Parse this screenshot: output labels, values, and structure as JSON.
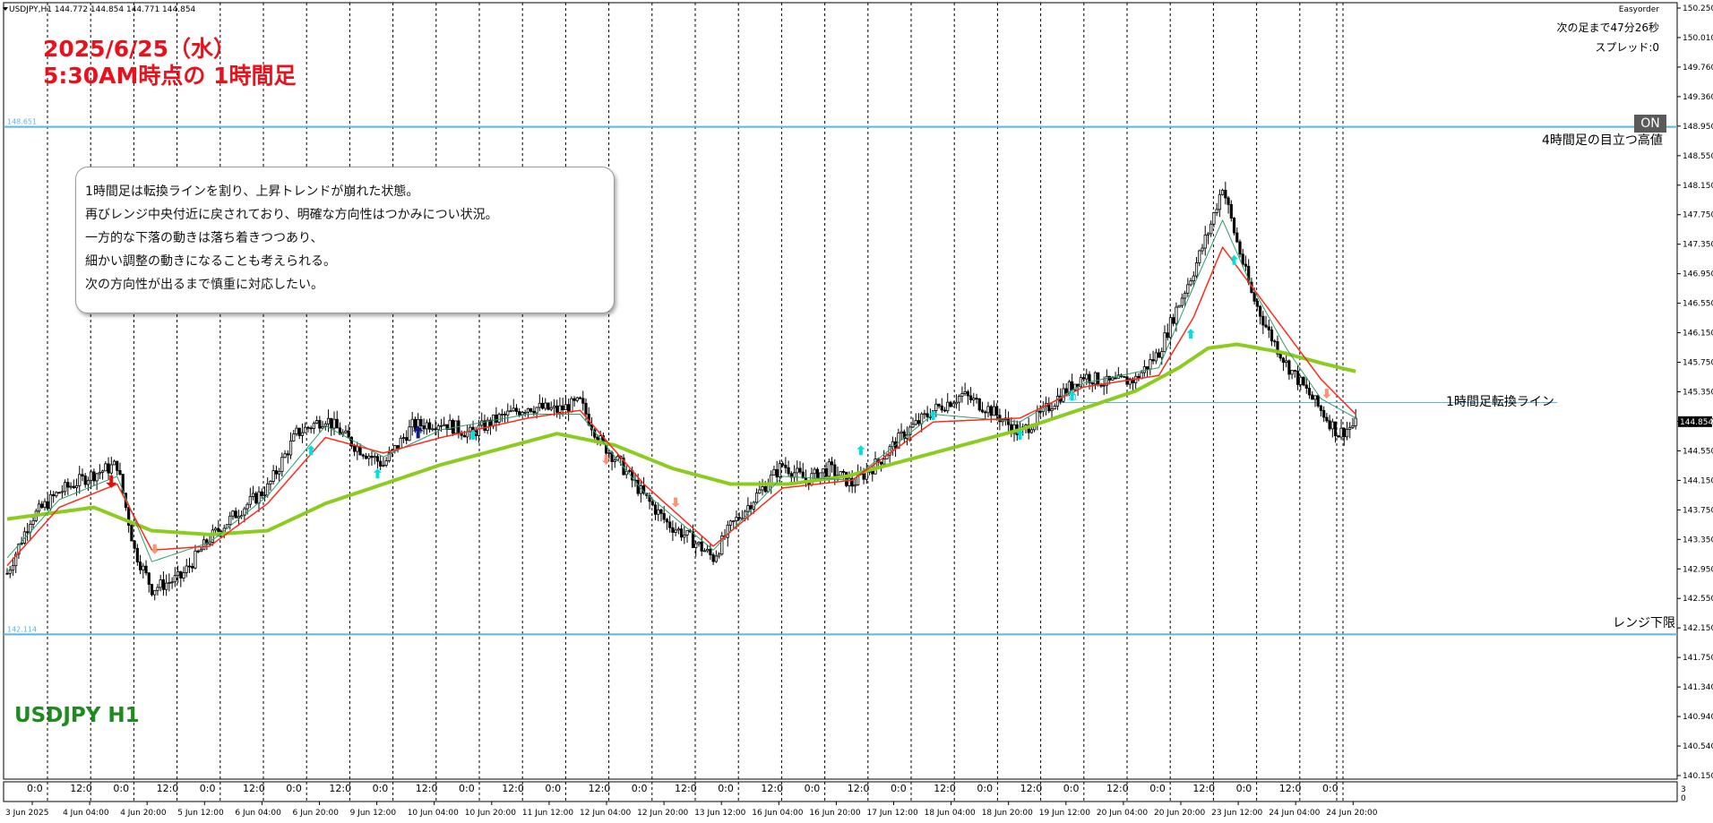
{
  "header": {
    "symbol_info": "USDJPY,H1  144.772 144.854 144.771 144.854",
    "ea_name": "Easyorder",
    "countdown": "次の足まで47分26秒",
    "spread": "スプレッド:0",
    "on_button": "ON"
  },
  "overlay": {
    "title_line1": "2025/6/25（水）",
    "title_line2": "5:30AM時点の 1時間足",
    "symbol_label": "USDJPY H1",
    "note_lines": [
      "1時間足は転換ラインを割り、上昇トレンドが崩れた状態。",
      "再びレンジ中央付近に戻されており、明確な方向性はつかみについ状況。",
      "一方的な下落の動きは落ち着きつつあり、",
      "細かい調整の動きになることも考えられる。",
      "次の方向性が出るまで慎重に対応したい。"
    ]
  },
  "hlines": [
    {
      "label": "4時間足の目立つ高値",
      "value_label": "148.651",
      "value": 148.651
    },
    {
      "label": "1時間足転換ライン",
      "value_label": "145.1",
      "value": 145.1
    },
    {
      "label": "レンジ下限",
      "value_label": "142.114",
      "value": 142.114
    }
  ],
  "colors": {
    "candle": "#000000",
    "ma_fast": "#2e9e6a",
    "ma_mid": "#ff2a1a",
    "ma_slow": "#8ccc20",
    "hline": "#5ab4e8",
    "signal_up": "#00e0e0",
    "signal_down": "#ff9070",
    "signal_strong_up": "#0a1a8a",
    "signal_strong_down": "#e01010",
    "title": "#e8111c",
    "symbol": "#1f8a1f"
  },
  "chart_data": {
    "type": "candlestick",
    "symbol": "USDJPY",
    "timeframe": "H1",
    "price_axis": {
      "ylim": [
        140.25,
        150.25
      ],
      "ticks": [
        "150.250",
        "150.010",
        "149.760",
        "149.360",
        "148.950",
        "148.550",
        "148.150",
        "147.750",
        "147.350",
        "146.950",
        "146.550",
        "146.150",
        "145.750",
        "145.350",
        "144.950",
        "144.550",
        "144.150",
        "143.750",
        "143.350",
        "142.950",
        "142.550",
        "142.150",
        "141.750",
        "141.340",
        "140.940",
        "140.540",
        "140.150"
      ],
      "current_price": "144.854"
    },
    "time_axis": {
      "labels": [
        "3 Jun 2025",
        "4 Jun 04:00",
        "4 Jun 20:00",
        "5 Jun 12:00",
        "6 Jun 04:00",
        "6 Jun 20:00",
        "9 Jun 12:00",
        "10 Jun 04:00",
        "10 Jun 20:00",
        "11 Jun 12:00",
        "12 Jun 04:00",
        "12 Jun 20:00",
        "13 Jun 12:00",
        "16 Jun 04:00",
        "16 Jun 20:00",
        "17 Jun 12:00",
        "18 Jun 04:00",
        "18 Jun 20:00",
        "19 Jun 12:00",
        "20 Jun 04:00",
        "20 Jun 20:00",
        "23 Jun 12:00",
        "24 Jun 04:00",
        "24 Jun 20:00"
      ]
    },
    "separator_labels": [
      "0:0",
      "12:0",
      "0:0",
      "12:0",
      "0:0",
      "12:0",
      "0:0",
      "12:0",
      "0:0",
      "12:0",
      "0:0",
      "12:0",
      "0:0",
      "12:0",
      "0:0",
      "12:0",
      "0:0",
      "12:0",
      "0:0",
      "12:0",
      "0:0",
      "12:0",
      "0:0",
      "12:0",
      "0:0",
      "12:0",
      "0:0",
      "12:0",
      "0:0",
      "12:0",
      "0:0"
    ],
    "sub_axis": [
      "3",
      "0"
    ],
    "price_path": [
      [
        0,
        142.9
      ],
      [
        8,
        143.6
      ],
      [
        18,
        143.95
      ],
      [
        28,
        144.15
      ],
      [
        38,
        144.3
      ],
      [
        44,
        143.2
      ],
      [
        50,
        142.7
      ],
      [
        60,
        142.85
      ],
      [
        70,
        143.35
      ],
      [
        80,
        143.7
      ],
      [
        90,
        144.0
      ],
      [
        100,
        144.7
      ],
      [
        110,
        144.9
      ],
      [
        120,
        144.55
      ],
      [
        130,
        144.3
      ],
      [
        140,
        144.8
      ],
      [
        150,
        144.85
      ],
      [
        160,
        144.7
      ],
      [
        170,
        144.9
      ],
      [
        180,
        145.05
      ],
      [
        190,
        145.0
      ],
      [
        198,
        145.1
      ],
      [
        205,
        144.6
      ],
      [
        212,
        144.3
      ],
      [
        220,
        143.9
      ],
      [
        228,
        143.55
      ],
      [
        236,
        143.35
      ],
      [
        244,
        143.1
      ],
      [
        250,
        143.5
      ],
      [
        260,
        143.95
      ],
      [
        268,
        144.3
      ],
      [
        276,
        144.1
      ],
      [
        284,
        144.25
      ],
      [
        292,
        144.05
      ],
      [
        300,
        144.3
      ],
      [
        310,
        144.7
      ],
      [
        320,
        145.0
      ],
      [
        330,
        145.2
      ],
      [
        340,
        145.0
      ],
      [
        350,
        144.7
      ],
      [
        356,
        144.9
      ],
      [
        364,
        145.2
      ],
      [
        372,
        145.45
      ],
      [
        380,
        145.35
      ],
      [
        390,
        145.4
      ],
      [
        398,
        145.75
      ],
      [
        404,
        146.3
      ],
      [
        410,
        146.8
      ],
      [
        416,
        147.4
      ],
      [
        420,
        147.9
      ],
      [
        424,
        147.3
      ],
      [
        430,
        146.5
      ],
      [
        436,
        146.0
      ],
      [
        442,
        145.6
      ],
      [
        448,
        145.3
      ],
      [
        454,
        145.0
      ],
      [
        460,
        144.7
      ],
      [
        466,
        144.82
      ]
    ],
    "ma_fast_path": [
      [
        0,
        143.1
      ],
      [
        18,
        143.85
      ],
      [
        38,
        144.15
      ],
      [
        50,
        143.05
      ],
      [
        70,
        143.3
      ],
      [
        90,
        143.9
      ],
      [
        110,
        144.8
      ],
      [
        130,
        144.4
      ],
      [
        150,
        144.75
      ],
      [
        180,
        144.95
      ],
      [
        198,
        144.95
      ],
      [
        220,
        143.95
      ],
      [
        244,
        143.2
      ],
      [
        268,
        144.15
      ],
      [
        292,
        144.1
      ],
      [
        320,
        144.95
      ],
      [
        350,
        144.85
      ],
      [
        372,
        145.35
      ],
      [
        398,
        145.55
      ],
      [
        410,
        146.6
      ],
      [
        420,
        147.45
      ],
      [
        430,
        146.6
      ],
      [
        442,
        145.8
      ],
      [
        454,
        145.15
      ],
      [
        466,
        144.9
      ]
    ],
    "ma_mid_path": [
      [
        0,
        143.0
      ],
      [
        18,
        143.75
      ],
      [
        38,
        144.05
      ],
      [
        50,
        143.2
      ],
      [
        70,
        143.25
      ],
      [
        90,
        143.8
      ],
      [
        110,
        144.65
      ],
      [
        130,
        144.45
      ],
      [
        150,
        144.65
      ],
      [
        180,
        144.9
      ],
      [
        198,
        145.0
      ],
      [
        220,
        144.05
      ],
      [
        244,
        143.25
      ],
      [
        268,
        144.0
      ],
      [
        292,
        144.1
      ],
      [
        320,
        144.85
      ],
      [
        350,
        144.9
      ],
      [
        372,
        145.3
      ],
      [
        398,
        145.45
      ],
      [
        410,
        146.2
      ],
      [
        420,
        147.1
      ],
      [
        430,
        146.6
      ],
      [
        442,
        146.0
      ],
      [
        454,
        145.4
      ],
      [
        466,
        144.95
      ]
    ],
    "ma_slow_path": [
      [
        0,
        143.6
      ],
      [
        30,
        143.75
      ],
      [
        50,
        143.45
      ],
      [
        70,
        143.4
      ],
      [
        90,
        143.45
      ],
      [
        110,
        143.8
      ],
      [
        130,
        144.05
      ],
      [
        150,
        144.3
      ],
      [
        170,
        144.5
      ],
      [
        190,
        144.7
      ],
      [
        210,
        144.55
      ],
      [
        230,
        144.25
      ],
      [
        250,
        144.05
      ],
      [
        270,
        144.05
      ],
      [
        290,
        144.15
      ],
      [
        310,
        144.35
      ],
      [
        330,
        144.55
      ],
      [
        350,
        144.75
      ],
      [
        370,
        145.0
      ],
      [
        390,
        145.25
      ],
      [
        405,
        145.55
      ],
      [
        415,
        145.8
      ],
      [
        425,
        145.85
      ],
      [
        440,
        145.75
      ],
      [
        455,
        145.6
      ],
      [
        466,
        145.5
      ]
    ],
    "signals": [
      {
        "bar": 36,
        "dir": "down",
        "strong": true,
        "price": 144.0
      },
      {
        "bar": 51,
        "dir": "down",
        "strong": false,
        "price": 143.15
      },
      {
        "bar": 105,
        "dir": "up",
        "strong": false,
        "price": 144.55
      },
      {
        "bar": 128,
        "dir": "up",
        "strong": false,
        "price": 144.25
      },
      {
        "bar": 142,
        "dir": "up",
        "strong": true,
        "price": 144.8
      },
      {
        "bar": 161,
        "dir": "up",
        "strong": false,
        "price": 144.75
      },
      {
        "bar": 207,
        "dir": "down",
        "strong": false,
        "price": 144.3
      },
      {
        "bar": 231,
        "dir": "down",
        "strong": false,
        "price": 143.75
      },
      {
        "bar": 295,
        "dir": "up",
        "strong": false,
        "price": 144.55
      },
      {
        "bar": 320,
        "dir": "up",
        "strong": false,
        "price": 145.0
      },
      {
        "bar": 350,
        "dir": "up",
        "strong": false,
        "price": 144.75
      },
      {
        "bar": 368,
        "dir": "up",
        "strong": false,
        "price": 145.25
      },
      {
        "bar": 409,
        "dir": "up",
        "strong": false,
        "price": 146.05
      },
      {
        "bar": 424,
        "dir": "up",
        "strong": false,
        "price": 147.0
      },
      {
        "bar": 456,
        "dir": "down",
        "strong": false,
        "price": 145.15
      }
    ]
  }
}
